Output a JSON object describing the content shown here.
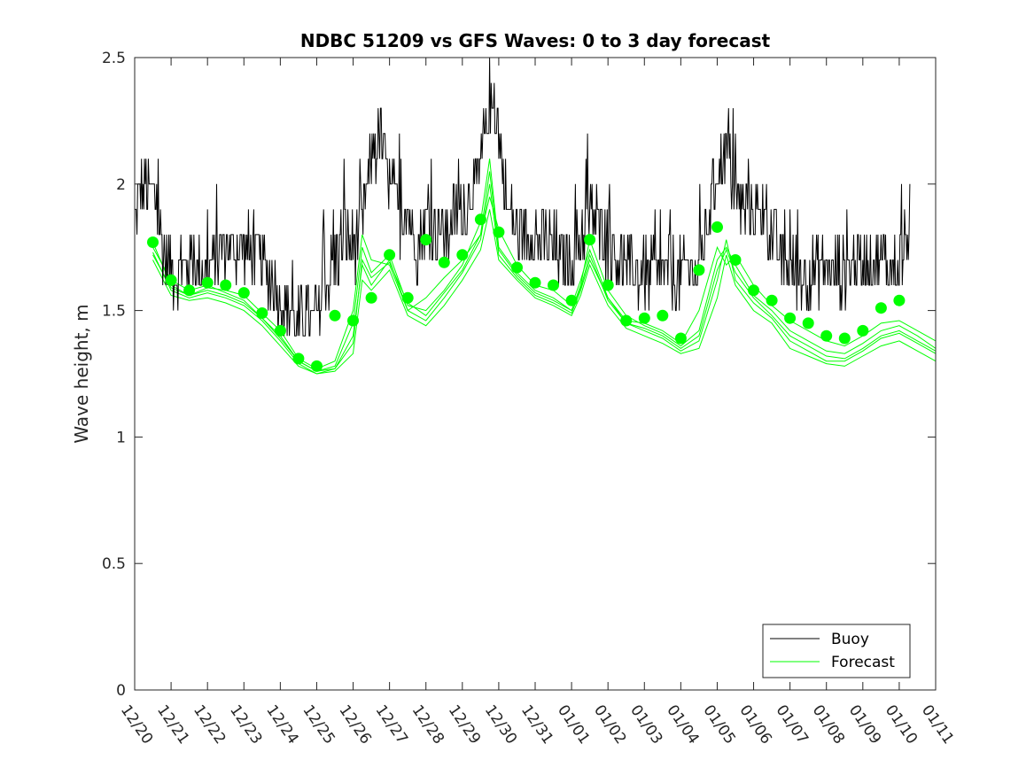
{
  "chart_data": {
    "type": "line",
    "title": "NDBC 51209 vs GFS Waves: 0 to 3 day forecast",
    "xlabel": "",
    "ylabel": "Wave height, m",
    "xlim": [
      0,
      22
    ],
    "ylim": [
      0,
      2.5
    ],
    "yticks": [
      0,
      0.5,
      1,
      1.5,
      2,
      2.5
    ],
    "ytick_labels": [
      "0",
      "0.5",
      "1",
      "1.5",
      "2",
      "2.5"
    ],
    "xtick_labels": [
      "12/20",
      "12/21",
      "12/22",
      "12/23",
      "12/24",
      "12/25",
      "12/26",
      "12/27",
      "12/28",
      "12/29",
      "12/30",
      "12/31",
      "01/01",
      "01/02",
      "01/03",
      "01/04",
      "01/05",
      "01/06",
      "01/07",
      "01/08",
      "01/09",
      "01/10",
      "01/11"
    ],
    "legend": {
      "location": "bottom-right",
      "entries": [
        "Buoy",
        "Forecast"
      ]
    },
    "colors": {
      "buoy": "#000000",
      "forecast": "#00ff00",
      "axis": "#262626"
    },
    "buoy_nodes": {
      "x": [
        0,
        0.25,
        0.5,
        0.75,
        1,
        1.5,
        2,
        2.5,
        3,
        3.5,
        4,
        4.5,
        4.75,
        5,
        5.25,
        5.5,
        5.75,
        6,
        6.25,
        6.5,
        6.75,
        7,
        7.25,
        7.5,
        7.75,
        8,
        8.5,
        9,
        9.5,
        9.75,
        10,
        10.25,
        10.5,
        11,
        11.5,
        12,
        12.25,
        12.5,
        12.75,
        13,
        13.25,
        13.5,
        14,
        14.5,
        15,
        15.5,
        15.75,
        16,
        16.25,
        16.5,
        16.75,
        17,
        17.5,
        18,
        18.5,
        19,
        19.5,
        20,
        20.5,
        21,
        21.3
      ],
      "y": [
        1.85,
        2.0,
        1.95,
        1.75,
        1.65,
        1.7,
        1.65,
        1.75,
        1.75,
        1.7,
        1.55,
        1.45,
        1.45,
        1.45,
        1.6,
        1.7,
        1.8,
        1.75,
        1.85,
        2.1,
        2.2,
        2.0,
        1.85,
        1.9,
        1.75,
        1.85,
        1.8,
        1.9,
        2.05,
        2.35,
        2.2,
        1.9,
        1.8,
        1.8,
        1.75,
        1.7,
        1.8,
        1.9,
        1.8,
        1.75,
        1.7,
        1.65,
        1.65,
        1.65,
        1.65,
        1.65,
        1.85,
        2.05,
        2.15,
        1.95,
        1.9,
        1.9,
        1.8,
        1.65,
        1.65,
        1.65,
        1.65,
        1.7,
        1.7,
        1.65,
        1.85
      ]
    },
    "forecast_dots": {
      "x": [
        0.5,
        1,
        1.5,
        2,
        2.5,
        3,
        3.5,
        4,
        4.5,
        5,
        5.5,
        6,
        6.5,
        7,
        7.5,
        8,
        8.5,
        9,
        9.5,
        10,
        10.5,
        11,
        11.5,
        12,
        12.5,
        13,
        13.5,
        14,
        14.5,
        15,
        15.5,
        16,
        16.5,
        17,
        17.5,
        18,
        18.5,
        19,
        19.5,
        20,
        20.5,
        21
      ],
      "y": [
        1.77,
        1.62,
        1.58,
        1.61,
        1.6,
        1.57,
        1.49,
        1.42,
        1.31,
        1.28,
        1.48,
        1.46,
        1.55,
        1.72,
        1.55,
        1.78,
        1.69,
        1.72,
        1.86,
        1.81,
        1.67,
        1.61,
        1.6,
        1.54,
        1.78,
        1.6,
        1.46,
        1.47,
        1.48,
        1.39,
        1.66,
        1.83,
        1.7,
        1.58,
        1.54,
        1.47,
        1.45,
        1.4,
        1.39,
        1.42,
        1.51,
        1.54
      ]
    },
    "forecast_runs": {
      "x": [
        0.5,
        1,
        1.5,
        2,
        2.5,
        3,
        3.5,
        4,
        4.5,
        5,
        5.5,
        6,
        6.25,
        6.5,
        7,
        7.5,
        8,
        8.5,
        9,
        9.5,
        9.75,
        10,
        10.5,
        11,
        11.5,
        12,
        12.25,
        12.5,
        13,
        13.5,
        14,
        14.5,
        15,
        15.5,
        16,
        16.25,
        16.5,
        17,
        17.5,
        18,
        18.5,
        19,
        19.5,
        20,
        20.5,
        21,
        21.5,
        22
      ],
      "runs": [
        [
          1.77,
          1.6,
          1.56,
          1.59,
          1.58,
          1.56,
          1.49,
          1.42,
          1.31,
          1.27,
          1.3,
          1.5,
          1.8,
          1.7,
          1.68,
          1.5,
          1.55,
          1.63,
          1.7,
          1.8,
          1.95,
          1.82,
          1.68,
          1.6,
          1.58,
          1.52,
          1.62,
          1.74,
          1.55,
          1.46,
          1.45,
          1.42,
          1.37,
          1.5,
          1.75,
          1.68,
          1.72,
          1.6,
          1.52,
          1.46,
          1.42,
          1.38,
          1.36,
          1.4,
          1.45,
          1.46,
          1.42,
          1.38
        ],
        [
          1.75,
          1.62,
          1.58,
          1.6,
          1.57,
          1.54,
          1.47,
          1.4,
          1.3,
          1.26,
          1.28,
          1.45,
          1.75,
          1.65,
          1.72,
          1.52,
          1.5,
          1.58,
          1.68,
          1.85,
          2.1,
          1.75,
          1.65,
          1.58,
          1.55,
          1.5,
          1.6,
          1.78,
          1.58,
          1.48,
          1.44,
          1.41,
          1.36,
          1.42,
          1.7,
          1.75,
          1.68,
          1.56,
          1.5,
          1.42,
          1.38,
          1.34,
          1.33,
          1.37,
          1.42,
          1.44,
          1.4,
          1.35
        ],
        [
          1.73,
          1.58,
          1.55,
          1.57,
          1.55,
          1.52,
          1.46,
          1.38,
          1.29,
          1.25,
          1.27,
          1.4,
          1.68,
          1.6,
          1.7,
          1.5,
          1.46,
          1.55,
          1.65,
          1.78,
          2.0,
          1.72,
          1.63,
          1.56,
          1.53,
          1.49,
          1.58,
          1.7,
          1.55,
          1.45,
          1.42,
          1.39,
          1.34,
          1.38,
          1.62,
          1.78,
          1.62,
          1.53,
          1.47,
          1.38,
          1.34,
          1.3,
          1.3,
          1.34,
          1.39,
          1.41,
          1.37,
          1.33
        ],
        [
          1.7,
          1.56,
          1.54,
          1.55,
          1.53,
          1.5,
          1.44,
          1.36,
          1.28,
          1.25,
          1.26,
          1.33,
          1.62,
          1.58,
          1.66,
          1.48,
          1.44,
          1.52,
          1.62,
          1.74,
          1.9,
          1.7,
          1.62,
          1.55,
          1.52,
          1.48,
          1.56,
          1.68,
          1.52,
          1.43,
          1.4,
          1.37,
          1.33,
          1.35,
          1.55,
          1.72,
          1.6,
          1.5,
          1.45,
          1.35,
          1.32,
          1.29,
          1.28,
          1.32,
          1.36,
          1.38,
          1.34,
          1.3
        ],
        [
          1.72,
          1.59,
          1.56,
          1.58,
          1.56,
          1.53,
          1.47,
          1.39,
          1.3,
          1.26,
          1.27,
          1.37,
          1.7,
          1.63,
          1.69,
          1.53,
          1.48,
          1.57,
          1.66,
          1.8,
          2.05,
          1.74,
          1.64,
          1.57,
          1.54,
          1.5,
          1.59,
          1.72,
          1.54,
          1.45,
          1.43,
          1.4,
          1.35,
          1.4,
          1.66,
          1.74,
          1.65,
          1.55,
          1.48,
          1.4,
          1.36,
          1.32,
          1.31,
          1.35,
          1.4,
          1.42,
          1.38,
          1.34
        ]
      ]
    }
  }
}
